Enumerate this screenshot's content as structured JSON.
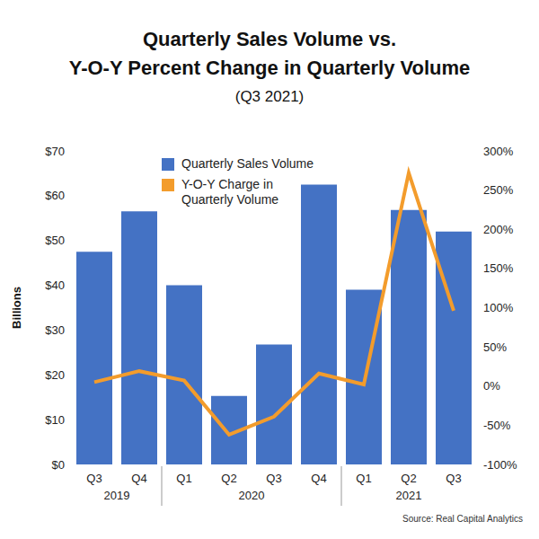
{
  "chart_data": {
    "type": "bar",
    "title": "Quarterly Sales Volume vs.\nY-O-Y Percent Change in Quarterly Volume",
    "subtitle": "(Q3 2021)",
    "y_label": "Billions",
    "source": "Source: Real Capital Analytics",
    "categories": [
      "Q3",
      "Q4",
      "Q1",
      "Q2",
      "Q3",
      "Q4",
      "Q1",
      "Q2",
      "Q3"
    ],
    "groups": [
      {
        "label": "2019",
        "span": 2
      },
      {
        "label": "2020",
        "span": 4
      },
      {
        "label": "2021",
        "span": 3
      }
    ],
    "series": [
      {
        "name": "Quarterly Sales Volume",
        "type": "bar",
        "color": "#4472c4",
        "values": [
          47.5,
          56.5,
          40,
          15.3,
          26.8,
          62.5,
          39,
          56.8,
          52
        ]
      },
      {
        "name": "Y-O-Y Charge in Quarterly Volume",
        "type": "line",
        "color": "#f39c2c",
        "axis": "y2",
        "values": [
          5,
          19,
          7,
          -62,
          -39,
          16,
          2,
          272,
          96
        ]
      }
    ],
    "ylim": [
      0,
      70
    ],
    "yticks": [
      {
        "value": 0,
        "label": "$0"
      },
      {
        "value": 10,
        "label": "$10"
      },
      {
        "value": 20,
        "label": "$20"
      },
      {
        "value": 30,
        "label": "$30"
      },
      {
        "value": 40,
        "label": "$40"
      },
      {
        "value": 50,
        "label": "$50"
      },
      {
        "value": 60,
        "label": "$60"
      },
      {
        "value": 70,
        "label": "$70"
      }
    ],
    "y2lim": [
      -100,
      300
    ],
    "y2ticks": [
      {
        "value": -100,
        "label": "-100%"
      },
      {
        "value": -50,
        "label": "-50%"
      },
      {
        "value": 0,
        "label": "0%"
      },
      {
        "value": 50,
        "label": "50%"
      },
      {
        "value": 100,
        "label": "100%"
      },
      {
        "value": 150,
        "label": "150%"
      },
      {
        "value": 200,
        "label": "200%"
      },
      {
        "value": 250,
        "label": "250%"
      },
      {
        "value": 300,
        "label": "300%"
      }
    ],
    "legend": "top-left",
    "grid": false
  }
}
